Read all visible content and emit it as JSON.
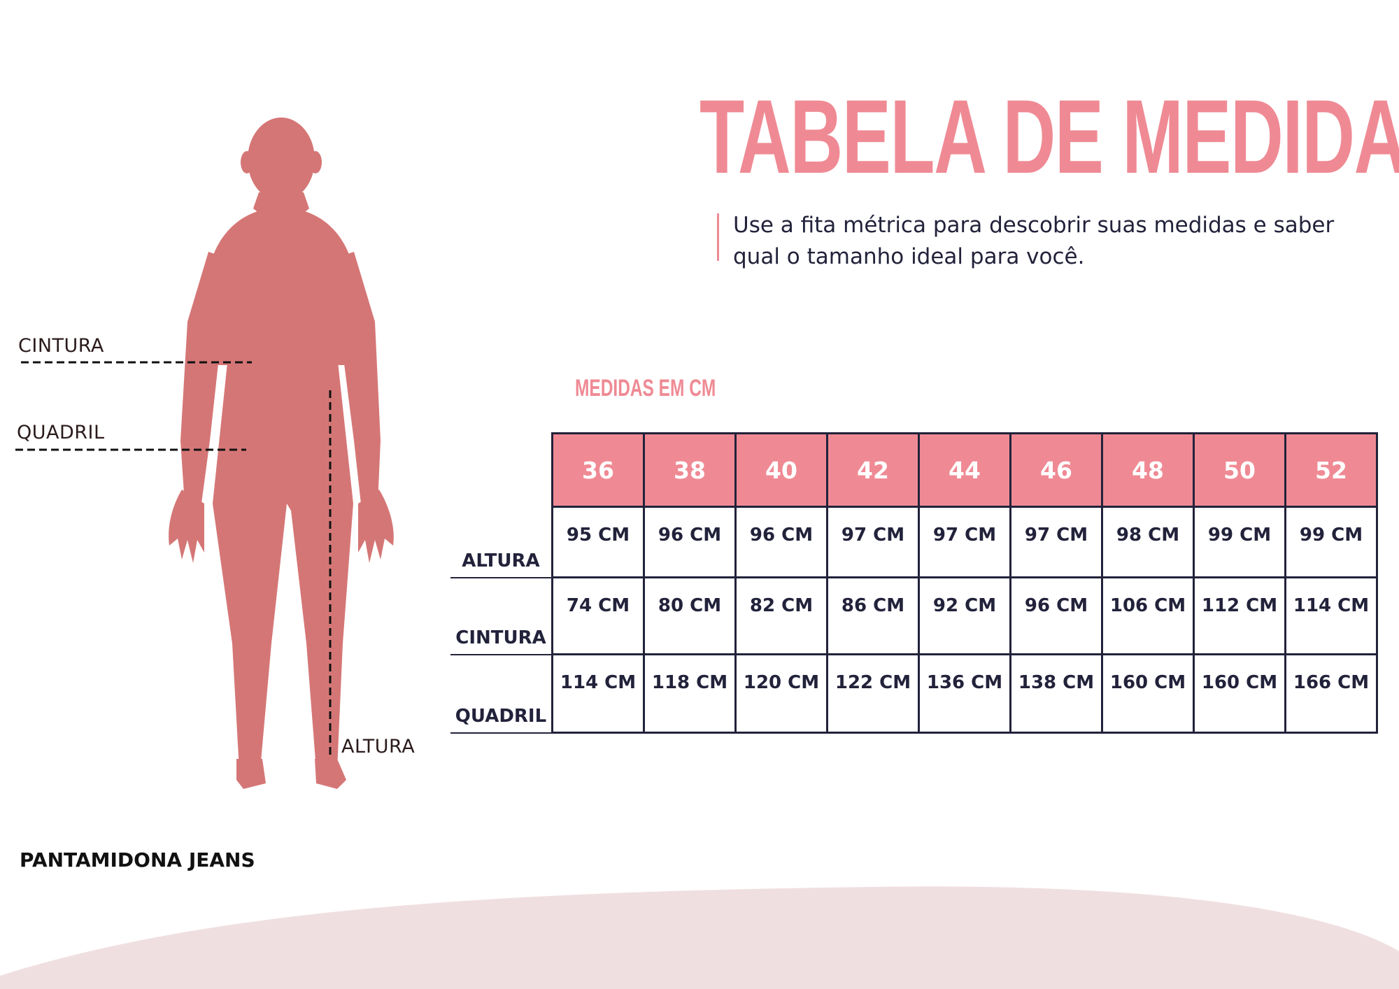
{
  "title": "TABELA DE MEDIDAS",
  "subtitle": "Use a fita métrica para descobrir suas medidas e saber qual o tamanho ideal para você.",
  "units_label": "MEDIDAS EM CM",
  "figure": {
    "labels": {
      "waist": "CINTURA",
      "hip": "QUADRIL",
      "height": "ALTURA"
    },
    "icon": "human-silhouette-icon",
    "color": "#d57676"
  },
  "table": {
    "sizes": [
      "36",
      "38",
      "40",
      "42",
      "44",
      "46",
      "48",
      "50",
      "52"
    ],
    "rows": [
      {
        "label": "ALTURA",
        "values": [
          "95 CM",
          "96 CM",
          "96 CM",
          "97 CM",
          "97 CM",
          "97 CM",
          "98 CM",
          "99 CM",
          "99 CM"
        ]
      },
      {
        "label": "CINTURA",
        "values": [
          "74 CM",
          "80 CM",
          "82 CM",
          "86 CM",
          "92 CM",
          "96 CM",
          "106 CM",
          "112 CM",
          "114 CM"
        ]
      },
      {
        "label": "QUADRIL",
        "values": [
          "114 CM",
          "118 CM",
          "120 CM",
          "122 CM",
          "136 CM",
          "138 CM",
          "160 CM",
          "160 CM",
          "166 CM"
        ]
      }
    ]
  },
  "brand": "PANTAMIDONA JEANS",
  "colors": {
    "accent": "#ef8a94",
    "text": "#22223b",
    "wave": "#f0dfe1"
  }
}
